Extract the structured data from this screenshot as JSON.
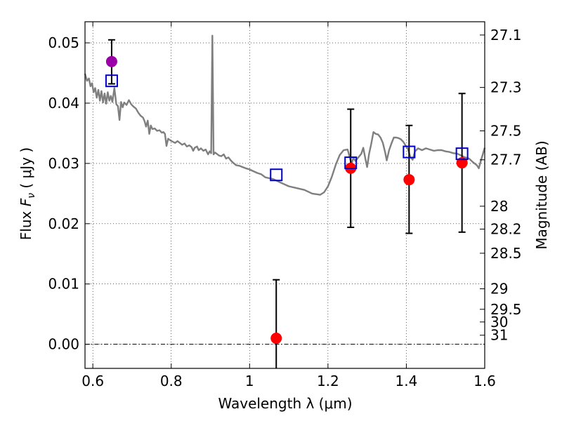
{
  "chart_data": {
    "type": "scatter",
    "xlabel": "Wavelength  λ (μm)",
    "ylabel": "Flux  F_ν  ( μJy )",
    "ylabel_parts": {
      "prefix": "Flux  ",
      "symbol": "F",
      "subscript": "ν",
      "suffix": "  ( μJy )"
    },
    "y2label": "Magnitude (AB)",
    "xlim": [
      0.58,
      1.6
    ],
    "ylim": [
      -0.004,
      0.0535
    ],
    "grid": true,
    "grid_style": "dotted",
    "x_ticks": [
      {
        "value": 0.6,
        "label": "0.6"
      },
      {
        "value": 0.8,
        "label": "0.8"
      },
      {
        "value": 1.0,
        "label": "1"
      },
      {
        "value": 1.2,
        "label": "1.2"
      },
      {
        "value": 1.4,
        "label": "1.4"
      },
      {
        "value": 1.6,
        "label": "1.6"
      }
    ],
    "y_ticks": [
      {
        "value": 0.0,
        "label": "0.00"
      },
      {
        "value": 0.01,
        "label": "0.01"
      },
      {
        "value": 0.02,
        "label": "0.02"
      },
      {
        "value": 0.03,
        "label": "0.03"
      },
      {
        "value": 0.04,
        "label": "0.04"
      },
      {
        "value": 0.05,
        "label": "0.05"
      }
    ],
    "mag_ticks": [
      {
        "flux": 0.0513,
        "label": "27.1"
      },
      {
        "flux": 0.0426,
        "label": "27.3"
      },
      {
        "flux": 0.0354,
        "label": "27.5"
      },
      {
        "flux": 0.0306,
        "label": "27.7"
      },
      {
        "flux": 0.0229,
        "label": "28"
      },
      {
        "flux": 0.0191,
        "label": "28.2"
      },
      {
        "flux": 0.0151,
        "label": "28.5"
      },
      {
        "flux": 0.0092,
        "label": "29"
      },
      {
        "flux": 0.0058,
        "label": "29.5"
      },
      {
        "flux": 0.0037,
        "label": "30"
      },
      {
        "flux": 0.0015,
        "label": "31"
      }
    ],
    "zero_line": 0.0,
    "series": [
      {
        "kind": "line",
        "color": "#7f7f7f",
        "points": [
          [
            0.58,
            0.0449
          ],
          [
            0.585,
            0.0437
          ],
          [
            0.59,
            0.0441
          ],
          [
            0.594,
            0.0428
          ],
          [
            0.598,
            0.0433
          ],
          [
            0.602,
            0.0418
          ],
          [
            0.606,
            0.0425
          ],
          [
            0.61,
            0.0409
          ],
          [
            0.614,
            0.0422
          ],
          [
            0.618,
            0.0404
          ],
          [
            0.622,
            0.042
          ],
          [
            0.626,
            0.0401
          ],
          [
            0.63,
            0.0416
          ],
          [
            0.634,
            0.0399
          ],
          [
            0.638,
            0.0418
          ],
          [
            0.642,
            0.0404
          ],
          [
            0.646,
            0.0412
          ],
          [
            0.65,
            0.0402
          ],
          [
            0.655,
            0.0425
          ],
          [
            0.66,
            0.0398
          ],
          [
            0.664,
            0.0395
          ],
          [
            0.668,
            0.0372
          ],
          [
            0.672,
            0.0402
          ],
          [
            0.676,
            0.0393
          ],
          [
            0.68,
            0.0401
          ],
          [
            0.686,
            0.0397
          ],
          [
            0.692,
            0.0405
          ],
          [
            0.698,
            0.0398
          ],
          [
            0.704,
            0.0394
          ],
          [
            0.71,
            0.0391
          ],
          [
            0.716,
            0.0384
          ],
          [
            0.722,
            0.0379
          ],
          [
            0.728,
            0.0376
          ],
          [
            0.732,
            0.037
          ],
          [
            0.736,
            0.0361
          ],
          [
            0.74,
            0.0371
          ],
          [
            0.744,
            0.0349
          ],
          [
            0.748,
            0.0363
          ],
          [
            0.752,
            0.0357
          ],
          [
            0.758,
            0.0358
          ],
          [
            0.764,
            0.0354
          ],
          [
            0.77,
            0.0355
          ],
          [
            0.776,
            0.0351
          ],
          [
            0.78,
            0.0352
          ],
          [
            0.784,
            0.0349
          ],
          [
            0.788,
            0.0329
          ],
          [
            0.792,
            0.0341
          ],
          [
            0.798,
            0.0338
          ],
          [
            0.804,
            0.0336
          ],
          [
            0.81,
            0.0334
          ],
          [
            0.816,
            0.0337
          ],
          [
            0.822,
            0.0334
          ],
          [
            0.828,
            0.0331
          ],
          [
            0.834,
            0.0333
          ],
          [
            0.84,
            0.0328
          ],
          [
            0.846,
            0.033
          ],
          [
            0.852,
            0.0327
          ],
          [
            0.856,
            0.0321
          ],
          [
            0.86,
            0.0326
          ],
          [
            0.866,
            0.0328
          ],
          [
            0.87,
            0.0322
          ],
          [
            0.876,
            0.0325
          ],
          [
            0.882,
            0.0321
          ],
          [
            0.888,
            0.0323
          ],
          [
            0.894,
            0.0315
          ],
          [
            0.898,
            0.032
          ],
          [
            0.902,
            0.0317
          ],
          [
            0.905,
            0.0512
          ],
          [
            0.908,
            0.0315
          ],
          [
            0.912,
            0.0318
          ],
          [
            0.916,
            0.0316
          ],
          [
            0.922,
            0.0313
          ],
          [
            0.928,
            0.0312
          ],
          [
            0.934,
            0.0315
          ],
          [
            0.94,
            0.0308
          ],
          [
            0.946,
            0.031
          ],
          [
            0.952,
            0.0305
          ],
          [
            0.958,
            0.0301
          ],
          [
            0.966,
            0.0297
          ],
          [
            0.974,
            0.0296
          ],
          [
            0.982,
            0.0294
          ],
          [
            0.99,
            0.0292
          ],
          [
            1.0,
            0.029
          ],
          [
            1.01,
            0.0287
          ],
          [
            1.02,
            0.0284
          ],
          [
            1.03,
            0.0282
          ],
          [
            1.04,
            0.0277
          ],
          [
            1.06,
            0.0274
          ],
          [
            1.08,
            0.0268
          ],
          [
            1.1,
            0.0262
          ],
          [
            1.12,
            0.0259
          ],
          [
            1.14,
            0.0256
          ],
          [
            1.16,
            0.025
          ],
          [
            1.18,
            0.0248
          ],
          [
            1.19,
            0.0252
          ],
          [
            1.2,
            0.0262
          ],
          [
            1.21,
            0.0278
          ],
          [
            1.22,
            0.0298
          ],
          [
            1.23,
            0.0314
          ],
          [
            1.24,
            0.0322
          ],
          [
            1.25,
            0.0323
          ],
          [
            1.255,
            0.0312
          ],
          [
            1.26,
            0.0298
          ],
          [
            1.265,
            0.031
          ],
          [
            1.27,
            0.0304
          ],
          [
            1.275,
            0.0308
          ],
          [
            1.28,
            0.0312
          ],
          [
            1.285,
            0.0316
          ],
          [
            1.29,
            0.0326
          ],
          [
            1.296,
            0.0306
          ],
          [
            1.3,
            0.0294
          ],
          [
            1.305,
            0.0316
          ],
          [
            1.31,
            0.0331
          ],
          [
            1.316,
            0.0352
          ],
          [
            1.322,
            0.0349
          ],
          [
            1.328,
            0.0348
          ],
          [
            1.334,
            0.0343
          ],
          [
            1.34,
            0.0334
          ],
          [
            1.346,
            0.0318
          ],
          [
            1.35,
            0.0305
          ],
          [
            1.356,
            0.0322
          ],
          [
            1.362,
            0.0333
          ],
          [
            1.368,
            0.0343
          ],
          [
            1.374,
            0.0343
          ],
          [
            1.38,
            0.0342
          ],
          [
            1.386,
            0.034
          ],
          [
            1.392,
            0.0336
          ],
          [
            1.398,
            0.033
          ],
          [
            1.404,
            0.0324
          ],
          [
            1.41,
            0.0311
          ],
          [
            1.416,
            0.0306
          ],
          [
            1.422,
            0.032
          ],
          [
            1.43,
            0.0325
          ],
          [
            1.44,
            0.0322
          ],
          [
            1.45,
            0.0325
          ],
          [
            1.46,
            0.0323
          ],
          [
            1.47,
            0.0321
          ],
          [
            1.48,
            0.0322
          ],
          [
            1.49,
            0.0322
          ],
          [
            1.5,
            0.032
          ],
          [
            1.51,
            0.0319
          ],
          [
            1.52,
            0.0317
          ],
          [
            1.53,
            0.0316
          ],
          [
            1.54,
            0.0313
          ],
          [
            1.55,
            0.031
          ],
          [
            1.56,
            0.0308
          ],
          [
            1.57,
            0.0302
          ],
          [
            1.58,
            0.0297
          ],
          [
            1.585,
            0.0292
          ],
          [
            1.59,
            0.0304
          ],
          [
            1.6,
            0.0326
          ]
        ]
      },
      {
        "kind": "errorbar",
        "marker": "circle",
        "color": "#ff0000",
        "points": [
          {
            "x": 1.068,
            "y": 0.001,
            "ylo": -0.0045,
            "yhi": 0.0107
          },
          {
            "x": 1.258,
            "y": 0.0292,
            "ylo": 0.0194,
            "yhi": 0.039
          },
          {
            "x": 1.407,
            "y": 0.0273,
            "ylo": 0.0184,
            "yhi": 0.0363
          },
          {
            "x": 1.542,
            "y": 0.0301,
            "ylo": 0.0186,
            "yhi": 0.0416
          }
        ]
      },
      {
        "kind": "errorbar",
        "marker": "circle",
        "color": "#9b00a8",
        "points": [
          {
            "x": 0.648,
            "y": 0.0469,
            "ylo": 0.0432,
            "yhi": 0.0505
          }
        ]
      },
      {
        "kind": "scatter",
        "marker": "square-open",
        "color": "#0000cc",
        "points": [
          {
            "x": 0.648,
            "y": 0.0437
          },
          {
            "x": 1.068,
            "y": 0.0281
          },
          {
            "x": 1.258,
            "y": 0.0301
          },
          {
            "x": 1.407,
            "y": 0.0319
          },
          {
            "x": 1.542,
            "y": 0.0316
          }
        ]
      }
    ]
  }
}
